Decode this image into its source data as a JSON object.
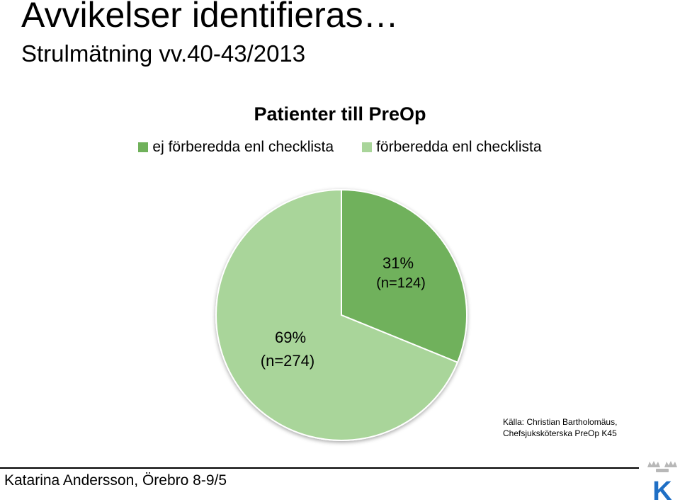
{
  "slide": {
    "title": "Avvikelser identifieras…",
    "subtitle": "Strulmätning vv.40-43/2013",
    "source_line1": "Källa: Christian Bartholomäus,",
    "source_line2": "Chefsjuksköterska PreOp K45",
    "footer": "Katarina Andersson, Örebro 8-9/5",
    "logo_letter": "K"
  },
  "chart_data": {
    "type": "pie",
    "title": "Patienter till PreOp",
    "legend_position": "top",
    "slices": [
      {
        "label": "ej förberedda enl checklista",
        "value": 124,
        "percent_label": "31%",
        "count_label": "(n=124)",
        "color": "#70b15b"
      },
      {
        "label": "förberedda enl checklista",
        "value": 274,
        "percent_label": "69%",
        "count_label": "(n=274)",
        "color": "#a9d59a"
      }
    ]
  },
  "colors": {
    "logo_blue": "#1f6fc5",
    "pie_border": "#ffffff"
  }
}
